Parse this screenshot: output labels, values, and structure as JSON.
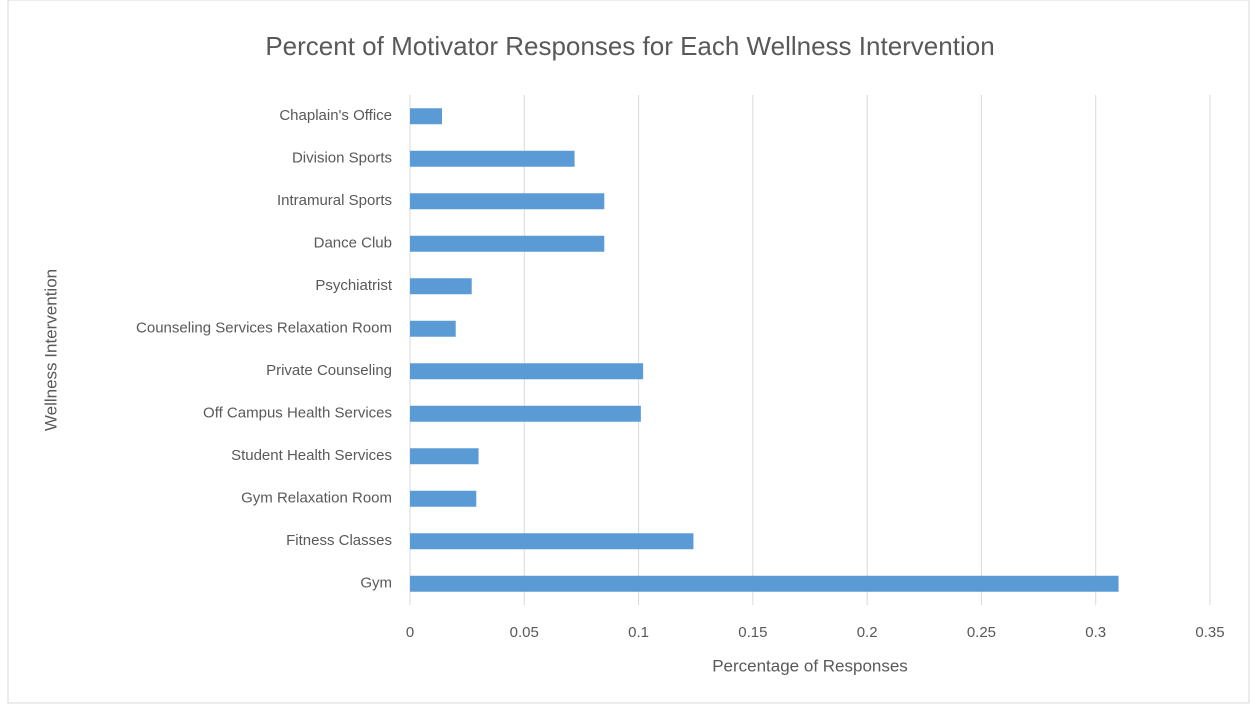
{
  "chart_data": {
    "type": "bar",
    "orientation": "horizontal",
    "title": "Percent of Motivator Responses for Each Wellness Intervention",
    "x_label": "Percentage of Responses",
    "y_label": "Wellness Intervention",
    "categories": [
      "Chaplain's Office",
      "Division Sports",
      "Intramural Sports",
      "Dance Club",
      "Psychiatrist",
      "Counseling Services Relaxation Room",
      "Private Counseling",
      "Off Campus Health Services",
      "Student Health Services",
      "Gym Relaxation Room",
      "Fitness Classes",
      "Gym"
    ],
    "values": [
      0.014,
      0.072,
      0.085,
      0.085,
      0.027,
      0.02,
      0.102,
      0.101,
      0.03,
      0.029,
      0.124,
      0.31
    ],
    "color": "#5b9bd5",
    "xlim": [
      0,
      0.35
    ],
    "xticks": [
      0,
      0.05,
      0.1,
      0.15,
      0.2,
      0.25,
      0.3,
      0.35
    ],
    "grid": true
  }
}
